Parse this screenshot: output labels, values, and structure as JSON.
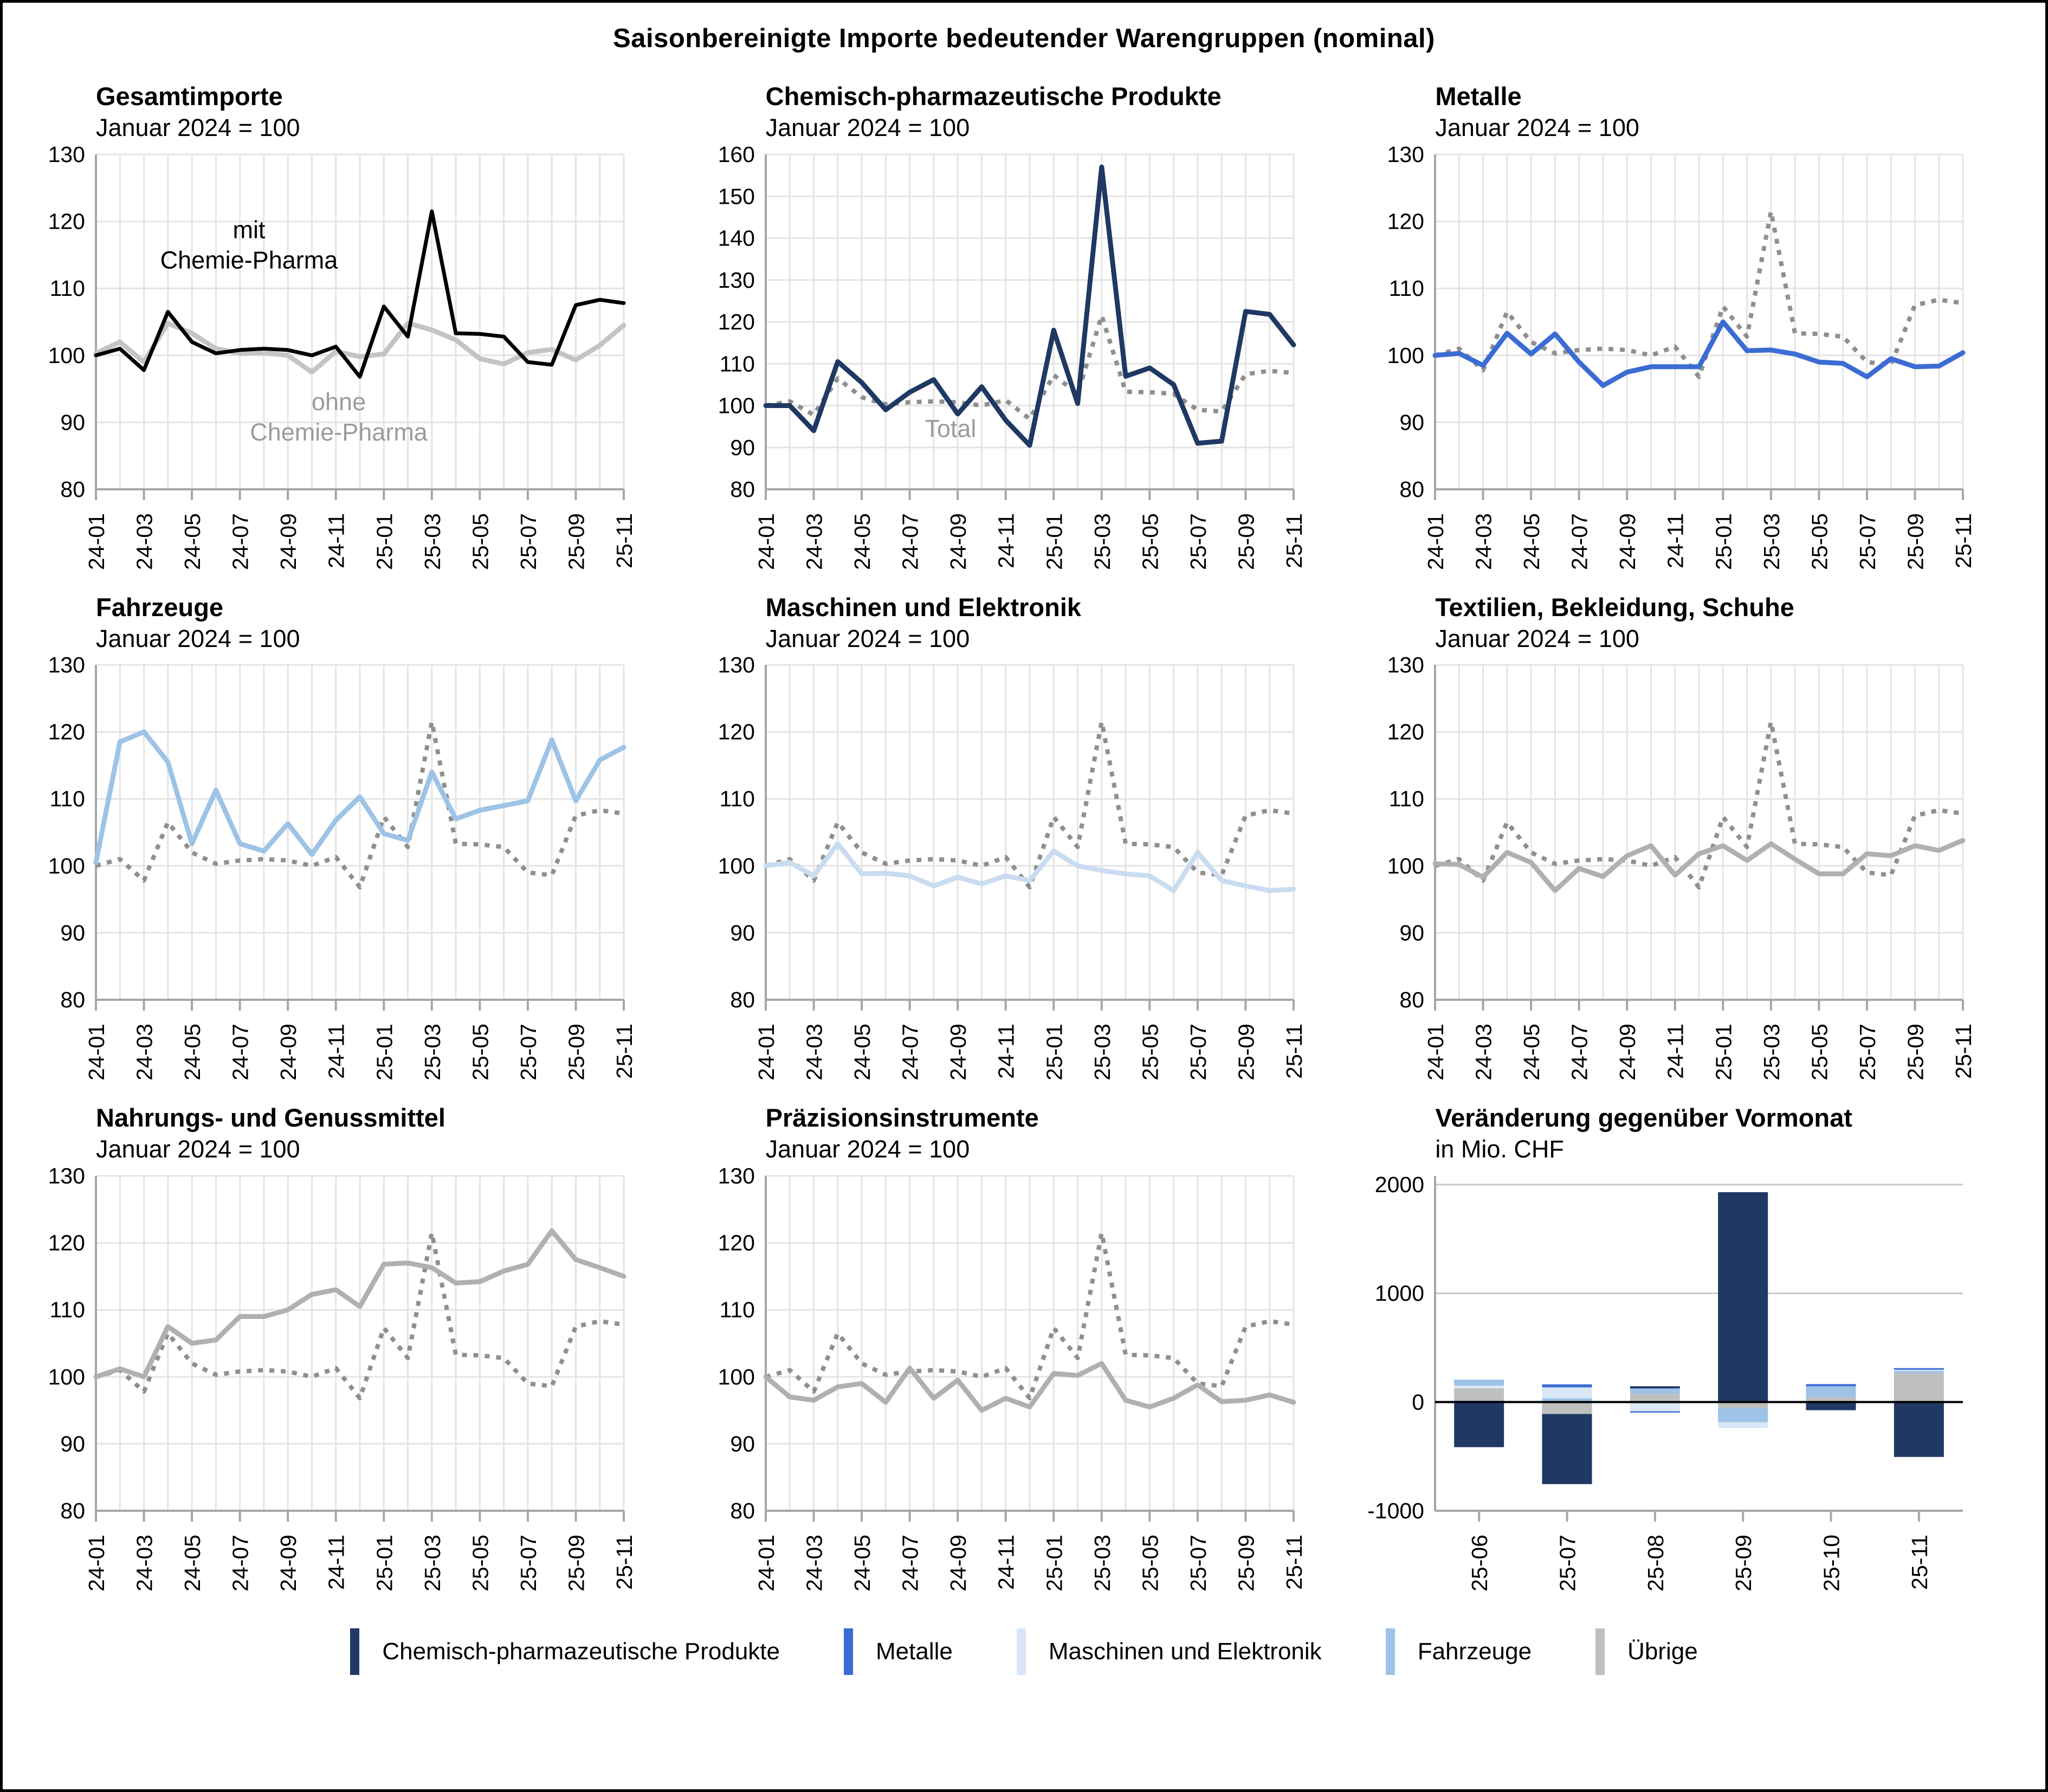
{
  "figure_title": "Saisonbereinigte Importe bedeutender Warengruppen (nominal)",
  "palette": {
    "chemie": "#1F3864",
    "metalle": "#3B6CD3",
    "maschinen": "#D9E7F6",
    "maschinen_line": "#C9DCF0",
    "fahrzeuge": "#9DC3E6",
    "uebrige": "#BFBFBF",
    "total_black": "#000000",
    "ohne_gray": "#C4C4C4",
    "solid_gray": "#B0B0B0",
    "dotted_gray": "#8F8F8F",
    "grid": "#E4E4E4",
    "axis": "#A6A6A6",
    "zero_line": "#000000",
    "annotation_gray": "#9B9B9B"
  },
  "chart_data": {
    "type": "line",
    "months": [
      "24-01",
      "24-02",
      "24-03",
      "24-04",
      "24-05",
      "24-06",
      "24-07",
      "24-08",
      "24-09",
      "24-10",
      "24-11",
      "24-12",
      "25-01",
      "25-02",
      "25-03",
      "25-04",
      "25-05",
      "25-06",
      "25-07",
      "25-08",
      "25-09",
      "25-10",
      "25-11"
    ],
    "x_tick_every": 2,
    "total_series_label": "Total (Gesamtimporte)",
    "total_values": [
      100,
      101,
      97.8,
      106.5,
      102,
      100.3,
      100.8,
      101,
      100.8,
      100,
      101.3,
      96.8,
      107.3,
      102.8,
      121.5,
      103.3,
      103.2,
      102.8,
      99,
      98.6,
      107.5,
      108.3,
      107.8
    ],
    "panels": [
      {
        "id": "gesamtimporte",
        "title": "Gesamtimporte",
        "subtitle": "Januar 2024 = 100",
        "ymin": 80,
        "ymax": 130,
        "yticks": [
          80,
          90,
          100,
          110,
          120,
          130
        ],
        "series": [
          {
            "label": "ohne Chemie-Pharma",
            "color": "ohne_gray",
            "style": "solid",
            "width": 9,
            "values": [
              100.3,
              102,
              99,
              104.8,
              103.3,
              101,
              100.3,
              100.4,
              100,
              97.5,
              100.6,
              99.8,
              100.2,
              104.8,
              103.8,
              102.3,
              99.5,
              98.7,
              100.4,
              100.9,
              99.3,
              101.5,
              104.5
            ]
          },
          {
            "label": "mit Chemie-Pharma",
            "color": "total_black",
            "style": "solid",
            "width": 7,
            "values": [
              100,
              101,
              97.8,
              106.5,
              102,
              100.3,
              100.8,
              101,
              100.8,
              100,
              101.3,
              96.8,
              107.3,
              102.8,
              121.5,
              103.3,
              103.2,
              102.8,
              99,
              98.6,
              107.5,
              108.3,
              107.8
            ]
          }
        ],
        "annotations": [
          {
            "lines": [
              "mit",
              "Chemie-Pharma"
            ],
            "x_frac": 0.29,
            "y_value": 117.5,
            "color_key": "total_black"
          },
          {
            "lines": [
              "ohne",
              "Chemie-Pharma"
            ],
            "x_frac": 0.46,
            "y_value": 91.8,
            "color_key": "annotation_gray"
          }
        ]
      },
      {
        "id": "chemisch-pharmazeutische-produkte",
        "title": "Chemisch-pharmazeutische Produkte",
        "subtitle": "Januar 2024 = 100",
        "ymin": 80,
        "ymax": 160,
        "yticks": [
          80,
          90,
          100,
          110,
          120,
          130,
          140,
          150,
          160
        ],
        "series": [
          {
            "label": "Total",
            "color": "dotted_gray",
            "style": "dotted",
            "width": 8,
            "use_total": true
          },
          {
            "label": "Chemisch-pharmazeutische Produkte",
            "color": "chemie",
            "style": "solid",
            "width": 9,
            "values": [
              100,
              100,
              94,
              110.5,
              105.5,
              99,
              103.2,
              106.2,
              98,
              104.5,
              96.5,
              90.5,
              118,
              100.5,
              157,
              107,
              109,
              105,
              91,
              91.5,
              122.5,
              121.8,
              114.5
            ]
          }
        ],
        "annotations": [
          {
            "lines": [
              "Total"
            ],
            "x_frac": 0.35,
            "y_value": 92.5,
            "color_key": "annotation_gray"
          }
        ]
      },
      {
        "id": "metalle",
        "title": "Metalle",
        "subtitle": "Januar 2024 = 100",
        "ymin": 80,
        "ymax": 130,
        "yticks": [
          80,
          90,
          100,
          110,
          120,
          130
        ],
        "series": [
          {
            "label": "Total",
            "color": "dotted_gray",
            "style": "dotted",
            "width": 8,
            "use_total": true
          },
          {
            "label": "Metalle",
            "color": "metalle",
            "style": "solid",
            "width": 9,
            "values": [
              100,
              100.3,
              98.5,
              103.3,
              100.2,
              103.2,
              99,
              95.5,
              97.5,
              98.3,
              98.3,
              98.3,
              105,
              100.7,
              100.8,
              100.2,
              99,
              98.8,
              96.8,
              99.5,
              98.3,
              98.4,
              100.4
            ]
          }
        ],
        "annotations": []
      },
      {
        "id": "fahrzeuge",
        "title": "Fahrzeuge",
        "subtitle": "Januar 2024 = 100",
        "ymin": 80,
        "ymax": 130,
        "yticks": [
          80,
          90,
          100,
          110,
          120,
          130
        ],
        "series": [
          {
            "label": "Total",
            "color": "dotted_gray",
            "style": "dotted",
            "width": 8,
            "use_total": true
          },
          {
            "label": "Fahrzeuge",
            "color": "fahrzeuge",
            "style": "solid",
            "width": 9,
            "values": [
              100.5,
              118.5,
              120,
              115.5,
              103.3,
              111.3,
              103.3,
              102.2,
              106.3,
              101.7,
              106.8,
              110.3,
              104.8,
              103.8,
              114,
              107,
              108.3,
              109,
              109.7,
              118.8,
              109.7,
              115.8,
              117.7
            ]
          }
        ],
        "annotations": []
      },
      {
        "id": "maschinen-und-elektronik",
        "title": "Maschinen und Elektronik",
        "subtitle": "Januar 2024 = 100",
        "ymin": 80,
        "ymax": 130,
        "yticks": [
          80,
          90,
          100,
          110,
          120,
          130
        ],
        "series": [
          {
            "label": "Total",
            "color": "dotted_gray",
            "style": "dotted",
            "width": 8,
            "use_total": true
          },
          {
            "label": "Maschinen und Elektronik",
            "color": "maschinen_line",
            "style": "solid",
            "width": 9,
            "values": [
              100,
              100.5,
              98.5,
              103.3,
              98.8,
              98.9,
              98.5,
              97,
              98.3,
              97.3,
              98.5,
              97.8,
              102.2,
              100,
              99.3,
              98.8,
              98.5,
              96.3,
              102,
              97.8,
              97,
              96.3,
              96.5
            ]
          }
        ],
        "annotations": []
      },
      {
        "id": "textilien-bekleidung-schuhe",
        "title": "Textilien, Bekleidung, Schuhe",
        "subtitle": "Januar 2024 = 100",
        "ymin": 80,
        "ymax": 130,
        "yticks": [
          80,
          90,
          100,
          110,
          120,
          130
        ],
        "series": [
          {
            "label": "Total",
            "color": "dotted_gray",
            "style": "dotted",
            "width": 8,
            "use_total": true
          },
          {
            "label": "Textilien, Bekleidung, Schuhe",
            "color": "solid_gray",
            "style": "solid",
            "width": 9,
            "values": [
              100.3,
              100.2,
              98.3,
              102,
              100.5,
              96.3,
              99.6,
              98.4,
              101.5,
              103,
              98.6,
              101.8,
              103,
              100.8,
              103.3,
              101,
              98.8,
              98.8,
              101.8,
              101.5,
              103,
              102.3,
              103.8
            ]
          }
        ],
        "annotations": []
      },
      {
        "id": "nahrungs-und-genussmittel",
        "title": "Nahrungs- und Genussmittel",
        "subtitle": "Januar 2024 = 100",
        "ymin": 80,
        "ymax": 130,
        "yticks": [
          80,
          90,
          100,
          110,
          120,
          130
        ],
        "series": [
          {
            "label": "Total",
            "color": "dotted_gray",
            "style": "dotted",
            "width": 8,
            "use_total": true
          },
          {
            "label": "Nahrungs- und Genussmittel",
            "color": "solid_gray",
            "style": "solid",
            "width": 9,
            "values": [
              100,
              101.2,
              100,
              107.5,
              105,
              105.5,
              109,
              109,
              110,
              112.3,
              113,
              110.5,
              116.8,
              117,
              116.3,
              114,
              114.2,
              115.8,
              116.8,
              121.8,
              117.5,
              116.3,
              115
            ]
          }
        ],
        "annotations": []
      },
      {
        "id": "praezisionsinstrumente",
        "title": "Präzisionsinstrumente",
        "subtitle": "Januar 2024 = 100",
        "ymin": 80,
        "ymax": 130,
        "yticks": [
          80,
          90,
          100,
          110,
          120,
          130
        ],
        "series": [
          {
            "label": "Total",
            "color": "dotted_gray",
            "style": "dotted",
            "width": 8,
            "use_total": true
          },
          {
            "label": "Präzisionsinstrumente",
            "color": "solid_gray",
            "style": "solid",
            "width": 9,
            "values": [
              100,
              97,
              96.5,
              98.5,
              99,
              96.2,
              101.3,
              96.8,
              99.5,
              95,
              96.8,
              95.5,
              100.5,
              100.2,
              102,
              96.5,
              95.5,
              96.8,
              98.8,
              96.3,
              96.5,
              97.3,
              96.2
            ]
          }
        ],
        "annotations": []
      }
    ],
    "bar_panel": {
      "id": "veraenderung-vormonat",
      "type": "bar",
      "title": "Veränderung gegenüber Vormonat",
      "subtitle": "in Mio. CHF",
      "ymin": -1000,
      "ymax": 2080,
      "yticks": [
        -1000,
        0,
        1000,
        2000
      ],
      "categories": [
        "25-06",
        "25-07",
        "25-08",
        "25-09",
        "25-10",
        "25-11"
      ],
      "bars": [
        {
          "month": "25-06",
          "positive": [
            {
              "key": "metalle",
              "value": 12
            },
            {
              "key": "uebrige",
              "value": 115
            },
            {
              "key": "maschinen",
              "value": 25
            },
            {
              "key": "fahrzeuge",
              "value": 55
            }
          ],
          "negative": [
            {
              "key": "chemie",
              "value": -415
            }
          ]
        },
        {
          "month": "25-07",
          "positive": [
            {
              "key": "fahrzeuge",
              "value": 35
            },
            {
              "key": "maschinen",
              "value": 100
            },
            {
              "key": "metalle",
              "value": 28
            }
          ],
          "negative": [
            {
              "key": "uebrige",
              "value": -110
            },
            {
              "key": "chemie",
              "value": -645
            }
          ]
        },
        {
          "month": "25-08",
          "positive": [
            {
              "key": "uebrige",
              "value": 75
            },
            {
              "key": "fahrzeuge",
              "value": 50
            },
            {
              "key": "chemie",
              "value": 20
            }
          ],
          "negative": [
            {
              "key": "maschinen",
              "value": -85
            },
            {
              "key": "metalle",
              "value": -12
            }
          ]
        },
        {
          "month": "25-09",
          "positive": [
            {
              "key": "chemie",
              "value": 1930
            }
          ],
          "negative": [
            {
              "key": "uebrige",
              "value": -55
            },
            {
              "key": "fahrzeuge",
              "value": -130
            },
            {
              "key": "maschinen",
              "value": -55
            }
          ]
        },
        {
          "month": "25-10",
          "positive": [
            {
              "key": "uebrige",
              "value": 45
            },
            {
              "key": "fahrzeuge",
              "value": 100
            },
            {
              "key": "metalle",
              "value": 20
            }
          ],
          "negative": [
            {
              "key": "chemie",
              "value": -75
            }
          ]
        },
        {
          "month": "25-11",
          "positive": [
            {
              "key": "uebrige",
              "value": 265
            },
            {
              "key": "fahrzeuge",
              "value": 20
            },
            {
              "key": "maschinen",
              "value": 12
            },
            {
              "key": "metalle",
              "value": 15
            }
          ],
          "negative": [
            {
              "key": "chemie",
              "value": -505
            }
          ]
        }
      ]
    }
  },
  "legend": {
    "items": [
      {
        "key": "chemie",
        "label": "Chemisch-pharmazeutische Produkte"
      },
      {
        "key": "metalle",
        "label": "Metalle"
      },
      {
        "key": "maschinen",
        "label": "Maschinen und Elektronik"
      },
      {
        "key": "fahrzeuge",
        "label": "Fahrzeuge"
      },
      {
        "key": "uebrige",
        "label": "Übrige"
      }
    ]
  }
}
